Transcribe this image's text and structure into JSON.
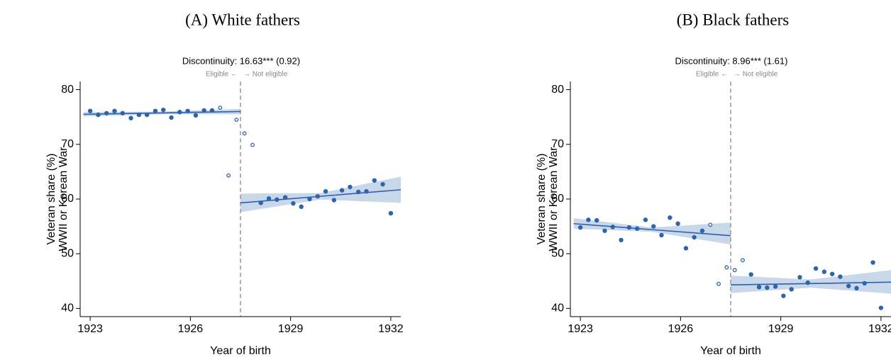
{
  "chart_data": [
    {
      "type": "scatter",
      "title": "(A) White fathers",
      "subtitle": "Discontinuity: 16.63*** (0.92)",
      "annotations": [
        "Eligible ←",
        "→ Not eligible"
      ],
      "ylabel": [
        "Veteran share (%)",
        "WWII or Korean War"
      ],
      "xlabel": "Year of birth",
      "xlim": [
        1922.7,
        1932.3
      ],
      "ylim": [
        38.5,
        81.5
      ],
      "xticks": [
        1923,
        1926,
        1929,
        1932
      ],
      "yticks": [
        40,
        50,
        60,
        70,
        80
      ],
      "cutoff": 1927.5,
      "series": [
        {
          "marker": "filled",
          "color": "#2e64a8",
          "x": [
            1923.0,
            1923.24,
            1923.49,
            1923.73,
            1923.97,
            1924.22,
            1924.46,
            1924.7,
            1924.95,
            1925.19,
            1925.43,
            1925.68,
            1925.92,
            1926.16,
            1926.41,
            1926.65,
            1928.11,
            1928.35,
            1928.59,
            1928.84,
            1929.08,
            1929.32,
            1929.57,
            1929.81,
            1930.05,
            1930.3,
            1930.54,
            1930.78,
            1931.03,
            1931.27,
            1931.51,
            1931.76,
            1932.0
          ],
          "values": [
            76.1,
            75.4,
            75.7,
            76.1,
            75.7,
            74.8,
            75.4,
            75.4,
            76.1,
            76.3,
            74.9,
            75.9,
            76.1,
            75.3,
            76.2,
            76.2,
            59.3,
            60.1,
            59.9,
            60.3,
            59.2,
            58.6,
            60.0,
            60.5,
            61.4,
            59.8,
            61.6,
            62.2,
            61.3,
            61.4,
            63.4,
            62.7,
            57.4
          ]
        },
        {
          "marker": "hollow",
          "color": "#2e64a8",
          "x": [
            1926.89,
            1927.14,
            1927.38,
            1927.62,
            1927.86
          ],
          "values": [
            76.7,
            64.3,
            74.5,
            72.0,
            69.9
          ]
        }
      ],
      "fits": [
        {
          "color": "#2f5fa8",
          "band_color": "#c9d7ea",
          "x": [
            1922.8,
            1925.15,
            1927.5
          ],
          "values": [
            75.5,
            75.75,
            76.0
          ],
          "lower": [
            75.1,
            75.5,
            75.5
          ],
          "upper": [
            75.9,
            76.0,
            76.5
          ]
        },
        {
          "color": "#2f5fa8",
          "band_color": "#c9d7ea",
          "x": [
            1927.5,
            1929.9,
            1932.3
          ],
          "values": [
            59.3,
            60.5,
            61.7
          ],
          "lower": [
            57.6,
            59.9,
            59.3
          ],
          "upper": [
            61.0,
            61.1,
            64.1
          ]
        }
      ]
    },
    {
      "type": "scatter",
      "title": "(B) Black fathers",
      "subtitle": "Discontinuity: 8.96*** (1.61)",
      "annotations": [
        "Eligible ←",
        "→ Not eligible"
      ],
      "ylabel": [
        "Veteran share (%)",
        "WWII or Korean War"
      ],
      "xlabel": "Year of birth",
      "xlim": [
        1922.7,
        1932.3
      ],
      "ylim": [
        38.5,
        81.5
      ],
      "xticks": [
        1923,
        1926,
        1929,
        1932
      ],
      "yticks": [
        40,
        50,
        60,
        70,
        80
      ],
      "cutoff": 1927.5,
      "series": [
        {
          "marker": "filled",
          "color": "#2e64a8",
          "x": [
            1923.0,
            1923.24,
            1923.49,
            1923.73,
            1923.97,
            1924.22,
            1924.46,
            1924.7,
            1924.95,
            1925.19,
            1925.43,
            1925.68,
            1925.92,
            1926.16,
            1926.41,
            1926.65,
            1928.11,
            1928.35,
            1928.59,
            1928.84,
            1929.08,
            1929.32,
            1929.57,
            1929.81,
            1930.05,
            1930.3,
            1930.54,
            1930.78,
            1931.03,
            1931.27,
            1931.51,
            1931.76,
            1932.0
          ],
          "values": [
            54.8,
            56.2,
            56.1,
            54.2,
            54.9,
            52.5,
            54.8,
            54.6,
            56.2,
            55.0,
            53.4,
            56.6,
            55.5,
            51.0,
            53.0,
            54.2,
            46.2,
            43.9,
            43.8,
            44.0,
            42.3,
            43.5,
            45.7,
            44.7,
            47.3,
            46.7,
            46.3,
            45.8,
            44.1,
            43.7,
            44.6,
            48.4,
            40.1
          ]
        },
        {
          "marker": "hollow",
          "color": "#2e64a8",
          "x": [
            1926.89,
            1927.14,
            1927.38,
            1927.62,
            1927.86
          ],
          "values": [
            55.3,
            44.5,
            47.5,
            47.0,
            48.8
          ]
        }
      ],
      "fits": [
        {
          "color": "#2f5fa8",
          "band_color": "#c9d7ea",
          "x": [
            1922.8,
            1925.15,
            1927.5
          ],
          "values": [
            55.5,
            54.4,
            53.3
          ],
          "lower": [
            54.6,
            54.0,
            51.7
          ],
          "upper": [
            56.5,
            54.8,
            55.7
          ]
        },
        {
          "color": "#2f5fa8",
          "band_color": "#c9d7ea",
          "x": [
            1927.5,
            1929.9,
            1932.3
          ],
          "values": [
            44.3,
            44.55,
            44.8
          ],
          "lower": [
            42.8,
            43.8,
            42.7
          ],
          "upper": [
            46.0,
            45.3,
            47.0
          ]
        }
      ]
    }
  ]
}
